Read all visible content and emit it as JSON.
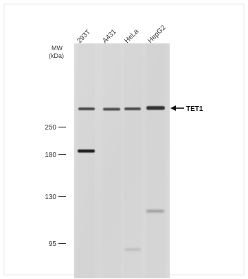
{
  "lanes": [
    "293T",
    "A431",
    "HeLa",
    "HepG2"
  ],
  "mw_label": [
    "MW",
    "(kDa)"
  ],
  "markers": [
    {
      "label": "250",
      "kda": 250
    },
    {
      "label": "180",
      "kda": 180
    },
    {
      "label": "130",
      "kda": 130
    },
    {
      "label": "95",
      "kda": 95
    }
  ],
  "target": {
    "label": "TET1"
  },
  "colors": {
    "membrane": "#d9d9d9",
    "band": "#2e2e2e",
    "text": "#333333",
    "arrow": "#111111",
    "frame": "#e6e6e6"
  }
}
